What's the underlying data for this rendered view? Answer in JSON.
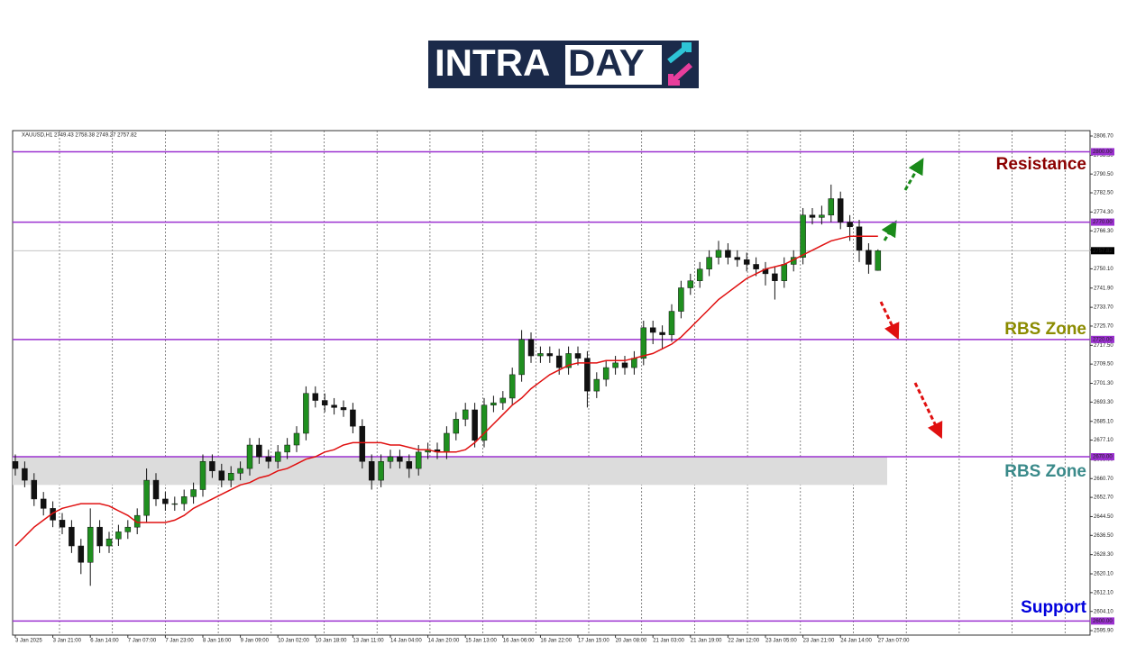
{
  "logo": {
    "text1": "INTRA",
    "text2": "DAY"
  },
  "chart_data": {
    "type": "candlestick",
    "header": "XAUUSD,H1  2749.43 2758.38 2749.27 2757.82",
    "categories": [
      "3 Jan 2025",
      null,
      null,
      null,
      "3 Jan 21:00",
      null,
      null,
      null,
      "6 Jan 14:00",
      null,
      null,
      null,
      "7 Jan 07:00",
      null,
      null,
      null,
      "7 Jan 23:00",
      null,
      null,
      null,
      "8 Jan 16:00",
      null,
      null,
      null,
      "9 Jan 09:00",
      null,
      null,
      null,
      "10 Jan 02:00",
      null,
      null,
      null,
      "10 Jan 18:00",
      null,
      null,
      null,
      "13 Jan 11:00",
      null,
      null,
      null,
      "14 Jan 04:00",
      null,
      null,
      null,
      "14 Jan 20:00",
      null,
      null,
      null,
      "15 Jan 13:00",
      null,
      null,
      null,
      "16 Jan 06:00",
      null,
      null,
      null,
      "16 Jan 22:00",
      null,
      null,
      null,
      "17 Jan 15:00",
      null,
      null,
      null,
      "20 Jan 08:00",
      null,
      null,
      null,
      "21 Jan 03:00",
      null,
      null,
      null,
      "21 Jan 19:00",
      null,
      null,
      null,
      "22 Jan 12:00",
      null,
      null,
      null,
      "23 Jan 05:00",
      null,
      null,
      null,
      "23 Jan 21:00",
      null,
      null,
      null,
      "24 Jan 14:00",
      null,
      null,
      null,
      "27 Jan 07:00"
    ],
    "open": [
      2668,
      2665,
      2660,
      2652,
      2648,
      2643,
      2640,
      2632,
      2625,
      2640,
      2632,
      2635,
      2638,
      2640,
      2645,
      2660,
      2652,
      2650,
      2650,
      2653,
      2656,
      2668,
      2664,
      2660,
      2663,
      2665,
      2675,
      2670,
      2668,
      2672,
      2675,
      2680,
      2697,
      2694,
      2692,
      2691,
      2690,
      2683,
      2668,
      2660,
      2668,
      2670,
      2668,
      2665,
      2672,
      2673,
      2672,
      2680,
      2686,
      2690,
      2677,
      2692,
      2693,
      2695,
      2705,
      2720,
      2713,
      2714,
      2713,
      2708,
      2714,
      2712,
      2698,
      2703,
      2708,
      2710,
      2708,
      2712,
      2725,
      2723,
      2722,
      2732,
      2742,
      2745,
      2750,
      2755,
      2758,
      2755,
      2754,
      2752,
      2750,
      2748,
      2745,
      2752,
      2755,
      2773,
      2772,
      2773,
      2780,
      2770,
      2768,
      2758,
      2749.43
    ],
    "high": [
      2671,
      2668,
      2663,
      2655,
      2651,
      2646,
      2643,
      2635,
      2648,
      2643,
      2638,
      2641,
      2643,
      2648,
      2665,
      2663,
      2655,
      2653,
      2656,
      2659,
      2671,
      2671,
      2667,
      2666,
      2668,
      2678,
      2678,
      2673,
      2675,
      2678,
      2683,
      2700,
      2700,
      2697,
      2695,
      2694,
      2693,
      2686,
      2671,
      2671,
      2673,
      2673,
      2671,
      2675,
      2676,
      2676,
      2683,
      2689,
      2693,
      2693,
      2695,
      2696,
      2698,
      2708,
      2724,
      2723,
      2717,
      2717,
      2716,
      2717,
      2717,
      2715,
      2706,
      2711,
      2713,
      2713,
      2715,
      2728,
      2728,
      2726,
      2735,
      2745,
      2748,
      2753,
      2758,
      2762,
      2761,
      2758,
      2757,
      2755,
      2753,
      2751,
      2755,
      2758,
      2776,
      2776,
      2777,
      2786,
      2783,
      2773,
      2771,
      2761,
      2758.38
    ],
    "low": [
      2662,
      2657,
      2649,
      2645,
      2640,
      2637,
      2629,
      2620,
      2615,
      2629,
      2629,
      2632,
      2635,
      2637,
      2642,
      2649,
      2647,
      2647,
      2647,
      2650,
      2653,
      2661,
      2657,
      2657,
      2660,
      2662,
      2667,
      2665,
      2665,
      2669,
      2672,
      2677,
      2691,
      2689,
      2688,
      2687,
      2680,
      2665,
      2656,
      2657,
      2665,
      2665,
      2661,
      2662,
      2669,
      2669,
      2669,
      2677,
      2683,
      2674,
      2674,
      2689,
      2690,
      2692,
      2702,
      2710,
      2710,
      2710,
      2705,
      2705,
      2709,
      2691,
      2695,
      2700,
      2705,
      2705,
      2705,
      2709,
      2718,
      2716,
      2719,
      2729,
      2739,
      2742,
      2747,
      2752,
      2752,
      2751,
      2749,
      2747,
      2743,
      2737,
      2742,
      2749,
      2752,
      2769,
      2769,
      2770,
      2767,
      2762,
      2753,
      2748,
      2749.27
    ],
    "close": [
      2665,
      2660,
      2652,
      2648,
      2643,
      2640,
      2632,
      2625,
      2640,
      2632,
      2635,
      2638,
      2640,
      2645,
      2660,
      2652,
      2650,
      2650,
      2653,
      2656,
      2668,
      2664,
      2660,
      2663,
      2665,
      2675,
      2670,
      2668,
      2672,
      2675,
      2680,
      2697,
      2694,
      2692,
      2691,
      2690,
      2683,
      2668,
      2660,
      2668,
      2670,
      2668,
      2665,
      2672,
      2673,
      2672,
      2680,
      2686,
      2690,
      2677,
      2692,
      2693,
      2695,
      2705,
      2720,
      2713,
      2714,
      2713,
      2708,
      2714,
      2712,
      2698,
      2703,
      2708,
      2710,
      2708,
      2712,
      2725,
      2723,
      2722,
      2732,
      2742,
      2745,
      2750,
      2755,
      2758,
      2755,
      2754,
      2752,
      2750,
      2748,
      2745,
      2752,
      2755,
      2773,
      2772,
      2773,
      2780,
      2770,
      2768,
      2758,
      2752,
      2757.82
    ],
    "bull_color": "#1f8f1f",
    "bear_color": "#111111",
    "ma": {
      "color": "#e01010",
      "values": [
        2632,
        2636,
        2640,
        2643,
        2646,
        2648,
        2649,
        2650,
        2650,
        2650,
        2649,
        2647,
        2645,
        2642,
        2642,
        2642,
        2642,
        2643,
        2645,
        2648,
        2650,
        2652,
        2654,
        2656,
        2658,
        2659,
        2661,
        2662,
        2664,
        2665,
        2667,
        2669,
        2670,
        2672,
        2673,
        2675,
        2676,
        2676,
        2676,
        2676,
        2675,
        2675,
        2674,
        2673,
        2673,
        2672,
        2672,
        2672,
        2673,
        2676,
        2680,
        2684,
        2688,
        2692,
        2695,
        2699,
        2702,
        2705,
        2707,
        2709,
        2710,
        2710,
        2710,
        2711,
        2711,
        2711,
        2712,
        2713,
        2714,
        2716,
        2718,
        2721,
        2725,
        2729,
        2733,
        2737,
        2740,
        2743,
        2746,
        2748,
        2750,
        2751,
        2752,
        2754,
        2756,
        2758,
        2760,
        2762,
        2763,
        2764,
        2764,
        2764,
        2764
      ]
    },
    "ylim": [
      2594,
      2809
    ],
    "yticks": [
      {
        "value": 2806.7,
        "label": "2806.70"
      },
      {
        "value": 2798.5,
        "label": "2798.50"
      },
      {
        "value": 2790.5,
        "label": "2790.50"
      },
      {
        "value": 2782.5,
        "label": "2782.50"
      },
      {
        "value": 2774.3,
        "label": "2774.30"
      },
      {
        "value": 2766.3,
        "label": "2766.30"
      },
      {
        "value": 2758.1,
        "label": "2758.10"
      },
      {
        "value": 2750.1,
        "label": "2750.10"
      },
      {
        "value": 2741.9,
        "label": "2741.90"
      },
      {
        "value": 2733.7,
        "label": "2733.70"
      },
      {
        "value": 2725.7,
        "label": "2725.70"
      },
      {
        "value": 2717.5,
        "label": "2717.50"
      },
      {
        "value": 2709.5,
        "label": "2709.50"
      },
      {
        "value": 2701.3,
        "label": "2701.30"
      },
      {
        "value": 2693.3,
        "label": "2693.30"
      },
      {
        "value": 2685.1,
        "label": "2685.10"
      },
      {
        "value": 2677.1,
        "label": "2677.10"
      },
      {
        "value": 2668.9,
        "label": "2668.90"
      },
      {
        "value": 2660.7,
        "label": "2660.70"
      },
      {
        "value": 2652.7,
        "label": "2652.70"
      },
      {
        "value": 2644.5,
        "label": "2644.50"
      },
      {
        "value": 2636.5,
        "label": "2636.50"
      },
      {
        "value": 2628.3,
        "label": "2628.30"
      },
      {
        "value": 2620.1,
        "label": "2620.10"
      },
      {
        "value": 2612.1,
        "label": "2612.10"
      },
      {
        "value": 2604.1,
        "label": "2604.10"
      },
      {
        "value": 2595.9,
        "label": "2595.90"
      }
    ],
    "current": {
      "value": 2757.82,
      "label": "2757.82"
    },
    "levels": [
      {
        "value": 2800,
        "label": "2800.00"
      },
      {
        "value": 2770,
        "label": "2770.00"
      },
      {
        "value": 2720,
        "label": "2720.00"
      },
      {
        "value": 2670,
        "label": "2670.00"
      },
      {
        "value": 2600,
        "label": "2600.00"
      }
    ],
    "level_color": "#9b30d0",
    "zone": {
      "from": 2658,
      "to": 2670,
      "color": "#dcdcdc"
    },
    "annotations": [
      {
        "text": "Resistance",
        "color": "#8b0000"
      },
      {
        "text": "RBS Zone",
        "color": "#8b8b00"
      },
      {
        "text": "RBS Zone",
        "color": "#3a8a8a"
      },
      {
        "text": "Support",
        "color": "#0000dd"
      }
    ]
  }
}
